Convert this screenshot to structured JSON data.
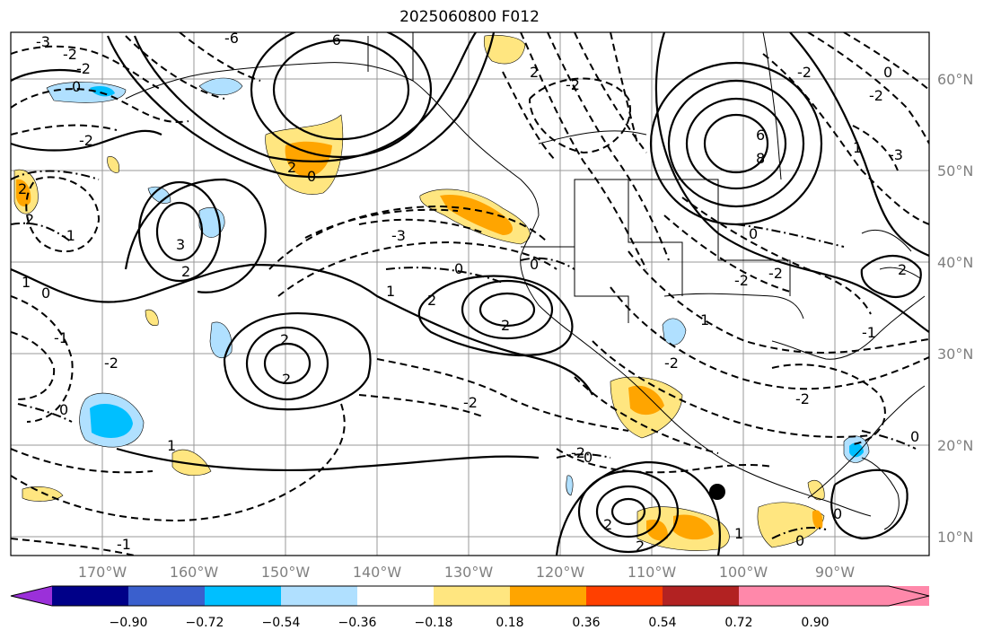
{
  "title": "2025060800 F012",
  "map": {
    "lat_labels": [
      "60°N",
      "50°N",
      "40°N",
      "30°N",
      "20°N",
      "10°N"
    ],
    "lon_labels": [
      "170°W",
      "160°W",
      "150°W",
      "140°W",
      "130°W",
      "120°W",
      "110°W",
      "100°W",
      "90°W"
    ],
    "contour_labels": [
      "-3",
      "-2",
      "-2",
      "0",
      "-2",
      "-1",
      "-1",
      "0",
      "-2",
      "0",
      "3",
      "2",
      "2",
      "0",
      "-3",
      "0",
      "1",
      "2",
      "2",
      "2",
      "2",
      "-2",
      "-2",
      "-6",
      "-6",
      "6",
      "8",
      "-2",
      "-3",
      "0",
      "-2",
      "1",
      "-2",
      "-2",
      "2",
      "-2",
      "0",
      "-2",
      "1",
      "-1",
      "0",
      "0",
      "0",
      "1",
      "2",
      "2",
      "1",
      "0",
      "0",
      "-1",
      "1",
      "2",
      "2",
      "2",
      "-2"
    ],
    "marker": "black-dot"
  },
  "colorbar": {
    "colors": [
      "#9b30d9",
      "#000088",
      "#3a5fcd",
      "#00bfff",
      "#b0e0ff",
      "#ffffff",
      "#ffe680",
      "#ffa500",
      "#ff4000",
      "#b22222",
      "#ff88aa"
    ],
    "tick_labels": [
      "−0.90",
      "−0.72",
      "−0.54",
      "−0.36",
      "−0.18",
      "0.18",
      "0.36",
      "0.54",
      "0.72",
      "0.90"
    ]
  }
}
